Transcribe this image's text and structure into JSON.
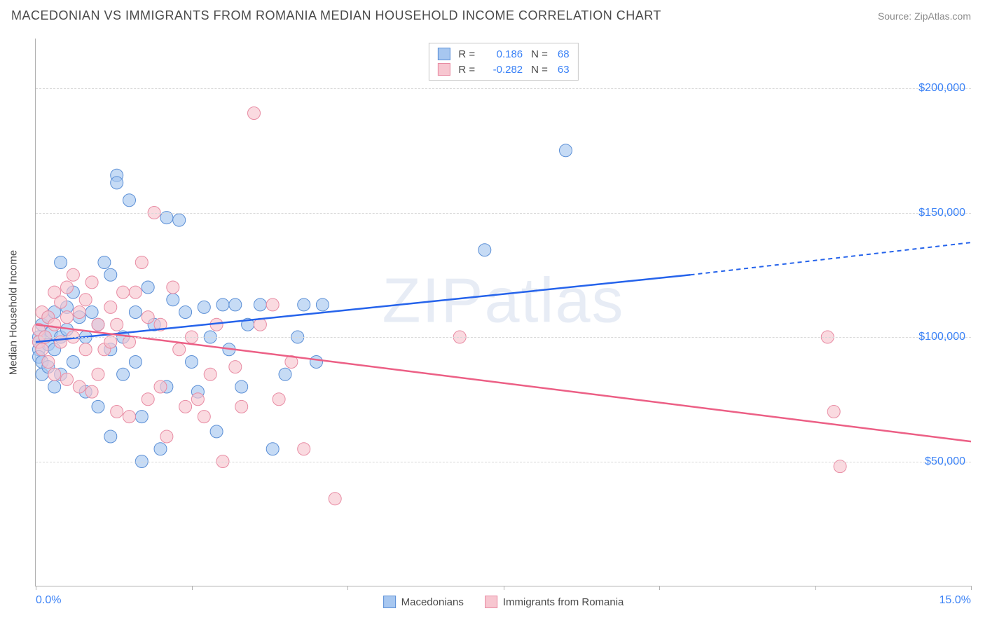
{
  "header": {
    "title": "MACEDONIAN VS IMMIGRANTS FROM ROMANIA MEDIAN HOUSEHOLD INCOME CORRELATION CHART",
    "source": "Source: ZipAtlas.com"
  },
  "chart": {
    "type": "scatter",
    "ylabel": "Median Household Income",
    "watermark": "ZIPatlas",
    "xlim": [
      0,
      15
    ],
    "ylim": [
      0,
      220000
    ],
    "xticks": [
      {
        "pos": 0,
        "label": "0.0%"
      },
      {
        "pos": 2.5,
        "label": ""
      },
      {
        "pos": 5.0,
        "label": ""
      },
      {
        "pos": 7.5,
        "label": ""
      },
      {
        "pos": 10.0,
        "label": ""
      },
      {
        "pos": 12.5,
        "label": ""
      },
      {
        "pos": 15,
        "label": "15.0%"
      }
    ],
    "yticks": [
      {
        "pos": 50000,
        "label": "$50,000"
      },
      {
        "pos": 100000,
        "label": "$100,000"
      },
      {
        "pos": 150000,
        "label": "$150,000"
      },
      {
        "pos": 200000,
        "label": "$200,000"
      }
    ],
    "series": [
      {
        "name": "Macedonians",
        "fill_color": "#a7c7f0",
        "stroke_color": "#5b8fd6",
        "line_color": "#2563eb",
        "R": "0.186",
        "N": "68",
        "trend": {
          "x1": 0,
          "y1": 98000,
          "x2_solid": 10.5,
          "y2_solid": 125000,
          "x2_dash": 15,
          "y2_dash": 138000
        },
        "points": [
          [
            0.05,
            100000
          ],
          [
            0.05,
            98000
          ],
          [
            0.05,
            95000
          ],
          [
            0.05,
            92000
          ],
          [
            0.1,
            105000
          ],
          [
            0.1,
            90000
          ],
          [
            0.1,
            85000
          ],
          [
            0.15,
            100000
          ],
          [
            0.2,
            108000
          ],
          [
            0.2,
            97000
          ],
          [
            0.2,
            88000
          ],
          [
            0.25,
            102000
          ],
          [
            0.3,
            110000
          ],
          [
            0.3,
            95000
          ],
          [
            0.3,
            80000
          ],
          [
            0.4,
            130000
          ],
          [
            0.4,
            100000
          ],
          [
            0.4,
            85000
          ],
          [
            0.5,
            112000
          ],
          [
            0.5,
            103000
          ],
          [
            0.6,
            118000
          ],
          [
            0.6,
            90000
          ],
          [
            0.7,
            108000
          ],
          [
            0.8,
            100000
          ],
          [
            0.8,
            78000
          ],
          [
            0.9,
            110000
          ],
          [
            1.0,
            105000
          ],
          [
            1.0,
            72000
          ],
          [
            1.1,
            130000
          ],
          [
            1.2,
            125000
          ],
          [
            1.2,
            95000
          ],
          [
            1.2,
            60000
          ],
          [
            1.3,
            165000
          ],
          [
            1.3,
            162000
          ],
          [
            1.4,
            100000
          ],
          [
            1.4,
            85000
          ],
          [
            1.5,
            155000
          ],
          [
            1.6,
            110000
          ],
          [
            1.6,
            90000
          ],
          [
            1.7,
            68000
          ],
          [
            1.8,
            120000
          ],
          [
            1.9,
            105000
          ],
          [
            2.0,
            55000
          ],
          [
            2.1,
            148000
          ],
          [
            2.1,
            80000
          ],
          [
            2.2,
            115000
          ],
          [
            2.3,
            147000
          ],
          [
            2.4,
            110000
          ],
          [
            2.5,
            90000
          ],
          [
            2.6,
            78000
          ],
          [
            2.7,
            112000
          ],
          [
            2.8,
            100000
          ],
          [
            2.9,
            62000
          ],
          [
            3.0,
            113000
          ],
          [
            3.1,
            95000
          ],
          [
            3.2,
            113000
          ],
          [
            3.3,
            80000
          ],
          [
            3.4,
            105000
          ],
          [
            3.6,
            113000
          ],
          [
            3.8,
            55000
          ],
          [
            4.0,
            85000
          ],
          [
            4.2,
            100000
          ],
          [
            4.3,
            113000
          ],
          [
            4.5,
            90000
          ],
          [
            4.6,
            113000
          ],
          [
            7.2,
            135000
          ],
          [
            8.5,
            175000
          ],
          [
            1.7,
            50000
          ]
        ]
      },
      {
        "name": "Immigrants from Romania",
        "fill_color": "#f7c6d0",
        "stroke_color": "#e88ba3",
        "line_color": "#ec5f85",
        "R": "-0.282",
        "N": "63",
        "trend": {
          "x1": 0,
          "y1": 105000,
          "x2_solid": 15,
          "y2_solid": 58000,
          "x2_dash": 15,
          "y2_dash": 58000
        },
        "points": [
          [
            0.05,
            103000
          ],
          [
            0.05,
            98000
          ],
          [
            0.1,
            110000
          ],
          [
            0.1,
            95000
          ],
          [
            0.15,
            100000
          ],
          [
            0.2,
            108000
          ],
          [
            0.2,
            90000
          ],
          [
            0.3,
            118000
          ],
          [
            0.3,
            105000
          ],
          [
            0.3,
            85000
          ],
          [
            0.4,
            114000
          ],
          [
            0.4,
            98000
          ],
          [
            0.5,
            120000
          ],
          [
            0.5,
            108000
          ],
          [
            0.5,
            83000
          ],
          [
            0.6,
            125000
          ],
          [
            0.6,
            100000
          ],
          [
            0.7,
            110000
          ],
          [
            0.7,
            80000
          ],
          [
            0.8,
            115000
          ],
          [
            0.8,
            95000
          ],
          [
            0.9,
            122000
          ],
          [
            0.9,
            78000
          ],
          [
            1.0,
            105000
          ],
          [
            1.0,
            85000
          ],
          [
            1.1,
            95000
          ],
          [
            1.2,
            112000
          ],
          [
            1.2,
            98000
          ],
          [
            1.3,
            105000
          ],
          [
            1.3,
            70000
          ],
          [
            1.4,
            118000
          ],
          [
            1.5,
            98000
          ],
          [
            1.5,
            68000
          ],
          [
            1.6,
            118000
          ],
          [
            1.7,
            130000
          ],
          [
            1.8,
            108000
          ],
          [
            1.8,
            75000
          ],
          [
            1.9,
            150000
          ],
          [
            2.0,
            105000
          ],
          [
            2.0,
            80000
          ],
          [
            2.2,
            120000
          ],
          [
            2.3,
            95000
          ],
          [
            2.4,
            72000
          ],
          [
            2.5,
            100000
          ],
          [
            2.6,
            75000
          ],
          [
            2.7,
            68000
          ],
          [
            2.8,
            85000
          ],
          [
            2.9,
            105000
          ],
          [
            3.0,
            50000
          ],
          [
            3.2,
            88000
          ],
          [
            3.3,
            72000
          ],
          [
            3.5,
            190000
          ],
          [
            3.6,
            105000
          ],
          [
            3.8,
            113000
          ],
          [
            3.9,
            75000
          ],
          [
            4.1,
            90000
          ],
          [
            4.3,
            55000
          ],
          [
            4.8,
            35000
          ],
          [
            6.8,
            100000
          ],
          [
            12.7,
            100000
          ],
          [
            12.8,
            70000
          ],
          [
            12.9,
            48000
          ],
          [
            2.1,
            60000
          ]
        ]
      }
    ],
    "marker_radius": 9,
    "marker_opacity": 0.65,
    "background_color": "#ffffff",
    "grid_color": "#d8d8d8"
  }
}
